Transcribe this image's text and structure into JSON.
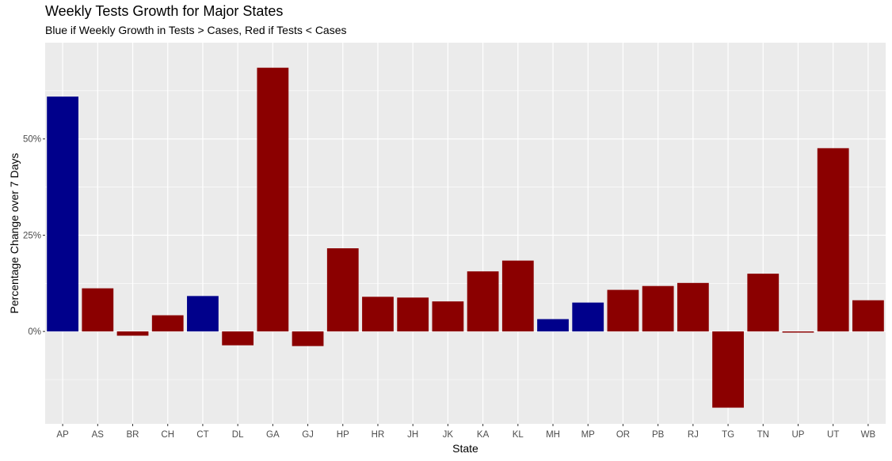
{
  "chart_data": {
    "type": "bar",
    "title": "Weekly Tests Growth for Major States",
    "subtitle": "Blue if Weekly Growth in Tests > Cases, Red if Tests < Cases",
    "xlabel": "State",
    "ylabel": "Percentage Change over 7 Days",
    "ylim": [
      -24,
      75
    ],
    "y_ticks": [
      0,
      25,
      50
    ],
    "y_tick_labels": [
      "0%",
      "25%",
      "50%"
    ],
    "grid": true,
    "colors": {
      "tests_greater": "#00008b",
      "tests_less": "#8b0000",
      "panel": "#ebebeb",
      "grid": "#ffffff"
    },
    "categories": [
      "AP",
      "AS",
      "BR",
      "CH",
      "CT",
      "DL",
      "GA",
      "GJ",
      "HP",
      "HR",
      "JH",
      "JK",
      "KA",
      "KL",
      "MH",
      "MP",
      "OR",
      "PB",
      "RJ",
      "TG",
      "TN",
      "UP",
      "UT",
      "WB"
    ],
    "values": [
      61,
      11.2,
      -1.1,
      4.2,
      9.2,
      -3.6,
      68.5,
      -3.8,
      21.6,
      9,
      8.8,
      7.8,
      15.6,
      18.4,
      3.2,
      7.5,
      10.8,
      11.8,
      12.6,
      -19.8,
      15,
      -0.3,
      47.6,
      8.1
    ],
    "tests_gt_cases": [
      true,
      false,
      false,
      false,
      true,
      false,
      false,
      false,
      false,
      false,
      false,
      false,
      false,
      false,
      true,
      true,
      false,
      false,
      false,
      false,
      false,
      false,
      false,
      false
    ]
  }
}
